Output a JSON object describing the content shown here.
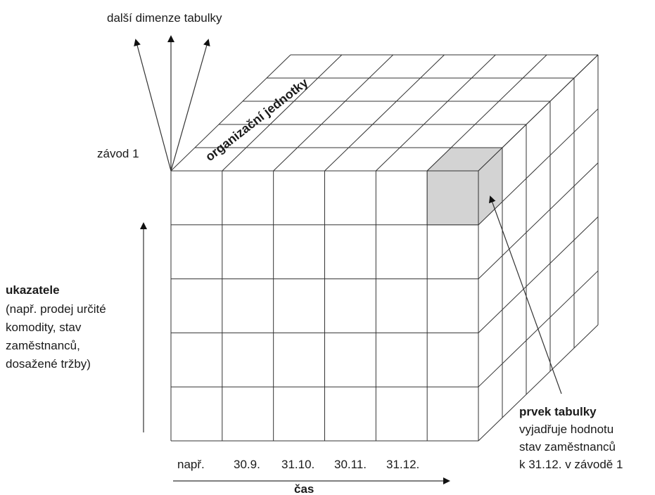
{
  "labels": {
    "dimensions": "další dimenze tabulky",
    "plant": "závod 1",
    "org_units": "organizační jednotky",
    "indicators_title": "ukazatele",
    "indicators_desc": [
      "(např. prodej určité",
      "komodity, stav",
      "zaměstnanců,",
      "dosažené tržby)"
    ],
    "cell_title": "prvek tabulky",
    "cell_desc": [
      "vyjadřuje hodnotu",
      "stav zaměstnanců",
      "k 31.12. v závodě 1"
    ],
    "time_ticks": [
      "např.",
      "30.9.",
      "31.10.",
      "30.11.",
      "31.12."
    ],
    "time_axis": "čas"
  },
  "colors": {
    "line": "#333333",
    "highlight": "#d3d3d3"
  }
}
